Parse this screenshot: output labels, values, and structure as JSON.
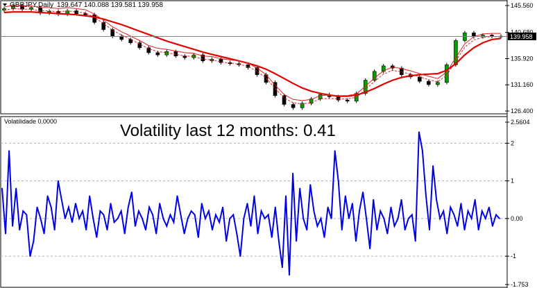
{
  "main_window": {
    "symbol_label": "GBPJPY,Daily",
    "ohlc": "139.647 140.088 139.581 139.958",
    "current_price_tag": "139.958",
    "price_scale": [
      "145.560",
      "140.680",
      "135.920",
      "131.160",
      "126.400"
    ]
  },
  "indicator_window": {
    "label": "Volatilidade 0.0000",
    "scale": [
      "2.5604",
      "2",
      "1",
      "0.00",
      "-1",
      "-1.753"
    ],
    "annotation": "Volatility last 12 months: 0.41"
  },
  "colors": {
    "background": "#ffffff",
    "candle_bull": "#00a000",
    "candle_bear": "#000000",
    "ma_long": "#e00000",
    "ma_short": "#e02020",
    "volatility_line": "#0000e6",
    "current_price_line": "#808080"
  },
  "chart_data": [
    {
      "type": "line",
      "title": "GBPJPY,Daily",
      "ylim": [
        126.4,
        145.56
      ],
      "series": [
        {
          "values": [
            145.0,
            145.6,
            144.9,
            145.2,
            144.2,
            144.5,
            144.0,
            144.6,
            144.1,
            143.9,
            142.5,
            141.2,
            140.0,
            139.4,
            138.8,
            137.9,
            137.0,
            136.6,
            137.2,
            136.4,
            136.1,
            136.6,
            135.5,
            135.8,
            135.2,
            135.0,
            134.8,
            134.3,
            133.0,
            131.6,
            129.2,
            127.6,
            127.0,
            127.8,
            128.6,
            129.4,
            129.0,
            128.4,
            128.2,
            129.6,
            132.0,
            133.6,
            134.6,
            134.2,
            133.0,
            132.6,
            131.8,
            131.2,
            131.6,
            134.8,
            139.2,
            140.6,
            139.9,
            140.2,
            140.0,
            139.9
          ]
        },
        {
          "values": [
            144.7,
            145.0,
            144.9,
            144.9,
            144.6,
            144.6,
            144.4,
            144.6,
            144.4,
            144.2,
            143.4,
            142.3,
            141.1,
            140.2,
            139.4,
            138.6,
            137.7,
            137.2,
            137.0,
            136.7,
            136.4,
            136.3,
            135.8,
            135.7,
            135.3,
            135.1,
            134.9,
            134.5,
            133.6,
            132.4,
            130.5,
            128.8,
            127.9,
            127.7,
            127.9,
            128.6,
            128.7,
            128.6,
            128.6,
            128.9,
            130.3,
            131.8,
            133.1,
            133.8,
            133.5,
            133.1,
            132.6,
            132.1,
            131.7,
            132.9,
            135.5,
            138.0,
            139.3,
            139.8,
            139.9,
            139.9
          ]
        },
        {
          "values": [
            144.3,
            144.4,
            144.4,
            144.4,
            144.3,
            144.2,
            144.1,
            144.0,
            143.9,
            143.7,
            143.5,
            143.1,
            142.6,
            142.1,
            141.5,
            140.9,
            140.3,
            139.7,
            139.1,
            138.6,
            138.1,
            137.6,
            137.1,
            136.7,
            136.3,
            135.9,
            135.5,
            135.1,
            134.6,
            134.0,
            133.2,
            132.3,
            131.4,
            130.6,
            130.0,
            129.6,
            129.3,
            129.1,
            129.1,
            129.3,
            129.8,
            130.5,
            131.3,
            132.0,
            132.5,
            132.8,
            133.0,
            133.1,
            133.2,
            133.8,
            135.0,
            136.6,
            137.9,
            138.8,
            139.4,
            139.6
          ]
        }
      ]
    },
    {
      "type": "line",
      "ylim": [
        -1.753,
        2.5604
      ],
      "series": [
        {
          "name": "Volatilidade",
          "values": [
            0.8,
            -0.4,
            1.8,
            -0.2,
            0.8,
            -0.3,
            0.2,
            0.1,
            -1.0,
            -0.6,
            0.3,
            0.0,
            -0.4,
            0.6,
            0.3,
            -0.3,
            1.0,
            0.5,
            0.0,
            0.3,
            -0.1,
            0.4,
            0.0,
            0.2,
            -0.3,
            0.6,
            0.0,
            -0.5,
            0.2,
            0.1,
            -0.3,
            0.4,
            -0.1,
            0.0,
            0.2,
            -0.4,
            0.3,
            0.7,
            -0.2,
            0.2,
            0.0,
            -0.3,
            0.3,
            0.1,
            -0.4,
            0.4,
            0.0,
            -0.2,
            0.1,
            -0.1,
            0.6,
            0.1,
            -0.4,
            0.0,
            0.2,
            0.1,
            -0.5,
            0.4,
            0.0,
            0.2,
            -0.3,
            0.1,
            -0.1,
            0.3,
            -0.6,
            0.0,
            0.1,
            -0.4,
            -1.0,
            0.0,
            0.4,
            -0.2,
            0.6,
            -0.4,
            0.2,
            0.0,
            0.1,
            -0.5,
            0.3,
            -0.6,
            -1.3,
            0.6,
            -1.5,
            1.2,
            -0.6,
            0.8,
            0.0,
            -0.3,
            0.9,
            0.2,
            -0.2,
            0.0,
            -0.5,
            0.3,
            0.0,
            1.8,
            1.0,
            -0.3,
            0.6,
            0.0,
            0.4,
            -0.6,
            0.2,
            0.7,
            0.0,
            -0.8,
            0.5,
            -0.3,
            0.2,
            0.0,
            -0.4,
            0.3,
            -0.2,
            0.0,
            0.5,
            -0.3,
            0.0,
            0.1,
            -0.6,
            2.3,
            1.8,
            0.6,
            -0.3,
            1.4,
            0.5,
            0.0,
            0.2,
            -0.4,
            0.3,
            0.1,
            -0.2,
            0.4,
            -0.3,
            0.2,
            0.0,
            0.5,
            -0.3,
            0.2,
            0.0,
            0.3,
            -0.2,
            0.1,
            0.0
          ]
        }
      ]
    }
  ]
}
